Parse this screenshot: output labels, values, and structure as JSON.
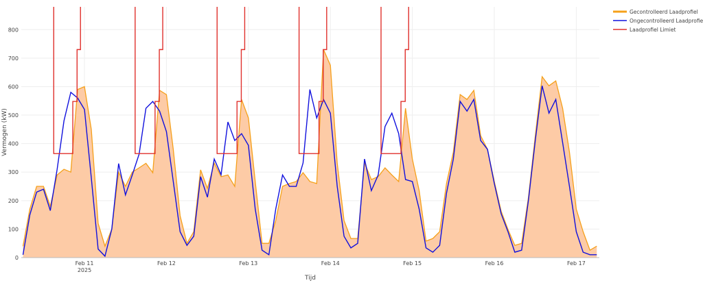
{
  "chart_data": {
    "type": "line",
    "title": "",
    "xlabel": "Tijd",
    "ylabel": "Vermogen (kW)",
    "xlim": [
      "2025-02-10 05:30",
      "2025-02-17 06:45"
    ],
    "ylim": [
      0,
      880
    ],
    "grid": true,
    "legend_position": "top-right",
    "x_ticks": [
      {
        "date": "2025-02-11 00:00",
        "label": "Feb 11",
        "sublabel": "2025"
      },
      {
        "date": "2025-02-12 00:00",
        "label": "Feb 12",
        "sublabel": ""
      },
      {
        "date": "2025-02-13 00:00",
        "label": "Feb 13",
        "sublabel": ""
      },
      {
        "date": "2025-02-14 00:00",
        "label": "Feb 14",
        "sublabel": ""
      },
      {
        "date": "2025-02-15 00:00",
        "label": "Feb 15",
        "sublabel": ""
      },
      {
        "date": "2025-02-16 00:00",
        "label": "Feb 16",
        "sublabel": ""
      },
      {
        "date": "2025-02-17 00:00",
        "label": "Feb 17",
        "sublabel": ""
      }
    ],
    "y_ticks": [
      "0",
      "100",
      "200",
      "300",
      "400",
      "500",
      "600",
      "700",
      "800"
    ],
    "x_start": "2025-02-10 06:00",
    "x_step_hours": 2,
    "series": [
      {
        "name": "Gecontrolleerd Laadprofiel",
        "color": "#f5a01a",
        "fill": "#fdcba6",
        "values": [
          40,
          170,
          250,
          250,
          180,
          290,
          310,
          300,
          590,
          600,
          450,
          120,
          40,
          100,
          300,
          250,
          300,
          315,
          331,
          298,
          587,
          572,
          380,
          147,
          50,
          91,
          308,
          243,
          332,
          284,
          290,
          250,
          555,
          490,
          267,
          50,
          50,
          130,
          250,
          260,
          267,
          298,
          267,
          260,
          730,
          675,
          332,
          130,
          67,
          67,
          332,
          274,
          284,
          315,
          290,
          267,
          524,
          346,
          235,
          58,
          67,
          91,
          260,
          370,
          572,
          555,
          587,
          428,
          380,
          267,
          163,
          99,
          43,
          50,
          212,
          428,
          635,
          603,
          620,
          524,
          370,
          170,
          91,
          26,
          40
        ]
      },
      {
        "name": "Ongecontrolleerd Laadprofiel",
        "color": "#1010dd",
        "values": [
          10,
          150,
          230,
          240,
          165,
          310,
          480,
          580,
          560,
          520,
          280,
          30,
          5,
          100,
          330,
          220,
          290,
          363,
          524,
          548,
          514,
          442,
          267,
          91,
          43,
          75,
          284,
          212,
          346,
          291,
          476,
          411,
          435,
          394,
          170,
          26,
          10,
          170,
          290,
          250,
          250,
          332,
          590,
          490,
          555,
          507,
          250,
          75,
          34,
          50,
          346,
          235,
          290,
          460,
          507,
          435,
          274,
          267,
          170,
          34,
          19,
          43,
          226,
          346,
          548,
          514,
          555,
          411,
          380,
          260,
          154,
          91,
          19,
          26,
          202,
          411,
          603,
          507,
          555,
          404,
          250,
          91,
          19,
          10,
          10
        ]
      },
      {
        "name": "Laadprofiel Limiet",
        "color": "#e0302c",
        "steps": [
          {
            "date": "2025-02-10",
            "levels": [
              {
                "from": "15:00",
                "value": 365
              },
              {
                "from": "20:35",
                "value": 548
              },
              {
                "from": "21:50",
                "value": 730
              }
            ],
            "until": "22:50"
          },
          {
            "date": "2025-02-11",
            "levels": [
              {
                "from": "14:50",
                "value": 365
              },
              {
                "from": "20:40",
                "value": 548
              },
              {
                "from": "21:55",
                "value": 730
              }
            ],
            "until": "22:55"
          },
          {
            "date": "2025-02-12",
            "levels": [
              {
                "from": "14:50",
                "value": 365
              },
              {
                "from": "20:40",
                "value": 548
              },
              {
                "from": "21:55",
                "value": 730
              }
            ],
            "until": "22:55"
          },
          {
            "date": "2025-02-13",
            "levels": [
              {
                "from": "14:50",
                "value": 365
              },
              {
                "from": "20:40",
                "value": 548
              },
              {
                "from": "21:55",
                "value": 730
              }
            ],
            "until": "22:55"
          },
          {
            "date": "2025-02-14",
            "levels": [
              {
                "from": "14:50",
                "value": 365
              },
              {
                "from": "20:40",
                "value": 548
              },
              {
                "from": "21:55",
                "value": 730
              }
            ],
            "until": "22:55"
          }
        ]
      }
    ]
  }
}
